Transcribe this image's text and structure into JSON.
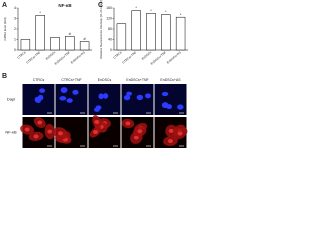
{
  "chart_data": [
    {
      "type": "bar",
      "panel": "A",
      "title": "NF-κB",
      "y_label": "mRNA level (fold)",
      "categories": [
        "CTRCs",
        "CTRCs+TNF",
        "EnDSCs",
        "EnDSCs+TNF",
        "EnDSCs+AS"
      ],
      "values": [
        1.0,
        3.3,
        1.2,
        1.3,
        0.8
      ],
      "annotations": [
        null,
        "*",
        null,
        "#",
        "#"
      ],
      "color": "#ffffff",
      "ylim": [
        0,
        4
      ],
      "yticks": [
        0,
        1,
        2,
        3,
        4
      ]
    },
    {
      "type": "bar",
      "panel": "C",
      "y_label": "Relative fluorescence intensity (% of control)",
      "categories": [
        "CTRCs",
        "CTRCs+TNF",
        "EnDSCs",
        "EnDSCs+TNF",
        "EnDSCs+AS"
      ],
      "values": [
        100,
        150,
        140,
        135,
        125
      ],
      "annotations": [
        null,
        "*",
        "*",
        "*",
        "*"
      ],
      "color": "#ffffff",
      "ylim": [
        0,
        160
      ],
      "yticks": [
        0,
        40,
        80,
        120,
        160
      ]
    }
  ],
  "panel_b": {
    "label": "B",
    "columns": [
      "CTRCs",
      "CTRCs+TNF",
      "EnDSCs",
      "EnDSCs+TNF",
      "EnDSCs+AS"
    ],
    "rows": [
      "Dapi",
      "NF-κB"
    ]
  }
}
